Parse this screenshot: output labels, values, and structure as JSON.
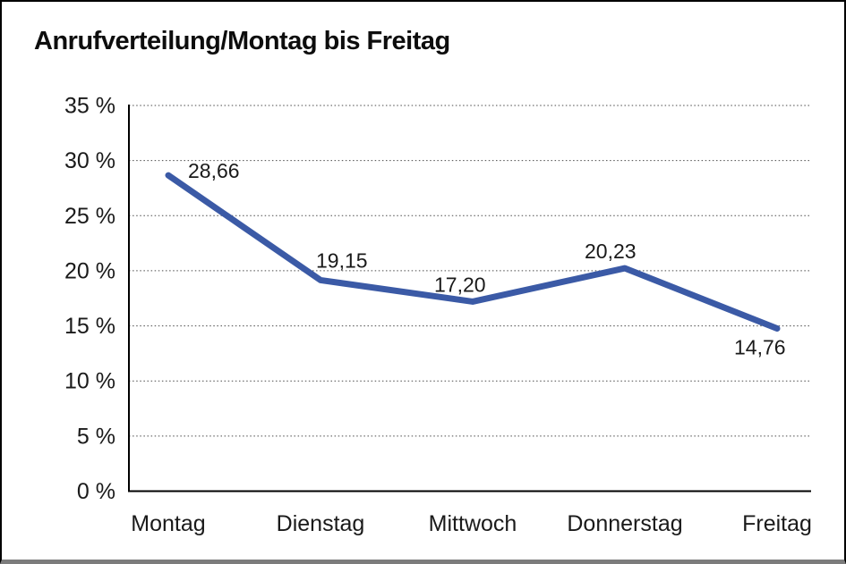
{
  "page": {
    "background": "#ffffff",
    "border_color": "#000000",
    "bottom_edge_color": "#7c7c7c"
  },
  "chart_data": {
    "type": "line",
    "title": "Anrufverteilung/Montag bis Freitag",
    "categories": [
      "Montag",
      "Dienstag",
      "Mittwoch",
      "Donnerstag",
      "Freitag"
    ],
    "series": [
      {
        "name": "Anrufverteilung",
        "values": [
          28.66,
          19.15,
          17.2,
          20.23,
          14.76
        ]
      }
    ],
    "value_labels": [
      "28,66",
      "19,15",
      "17,20",
      "20,23",
      "14,76"
    ],
    "xlabel": "",
    "ylabel": "",
    "ylim": [
      0,
      35
    ],
    "ytick_step": 5,
    "ytick_labels": [
      "0 %",
      "5 %",
      "10 %",
      "15 %",
      "20 %",
      "25 %",
      "30 %",
      "35 %"
    ],
    "grid": "horizontal-dotted",
    "gridline_color": "#4a4a4a",
    "axis_color": "#000000",
    "text_color": "#1a1a1a",
    "line_color": "#3b5aa6",
    "legend": "none"
  }
}
